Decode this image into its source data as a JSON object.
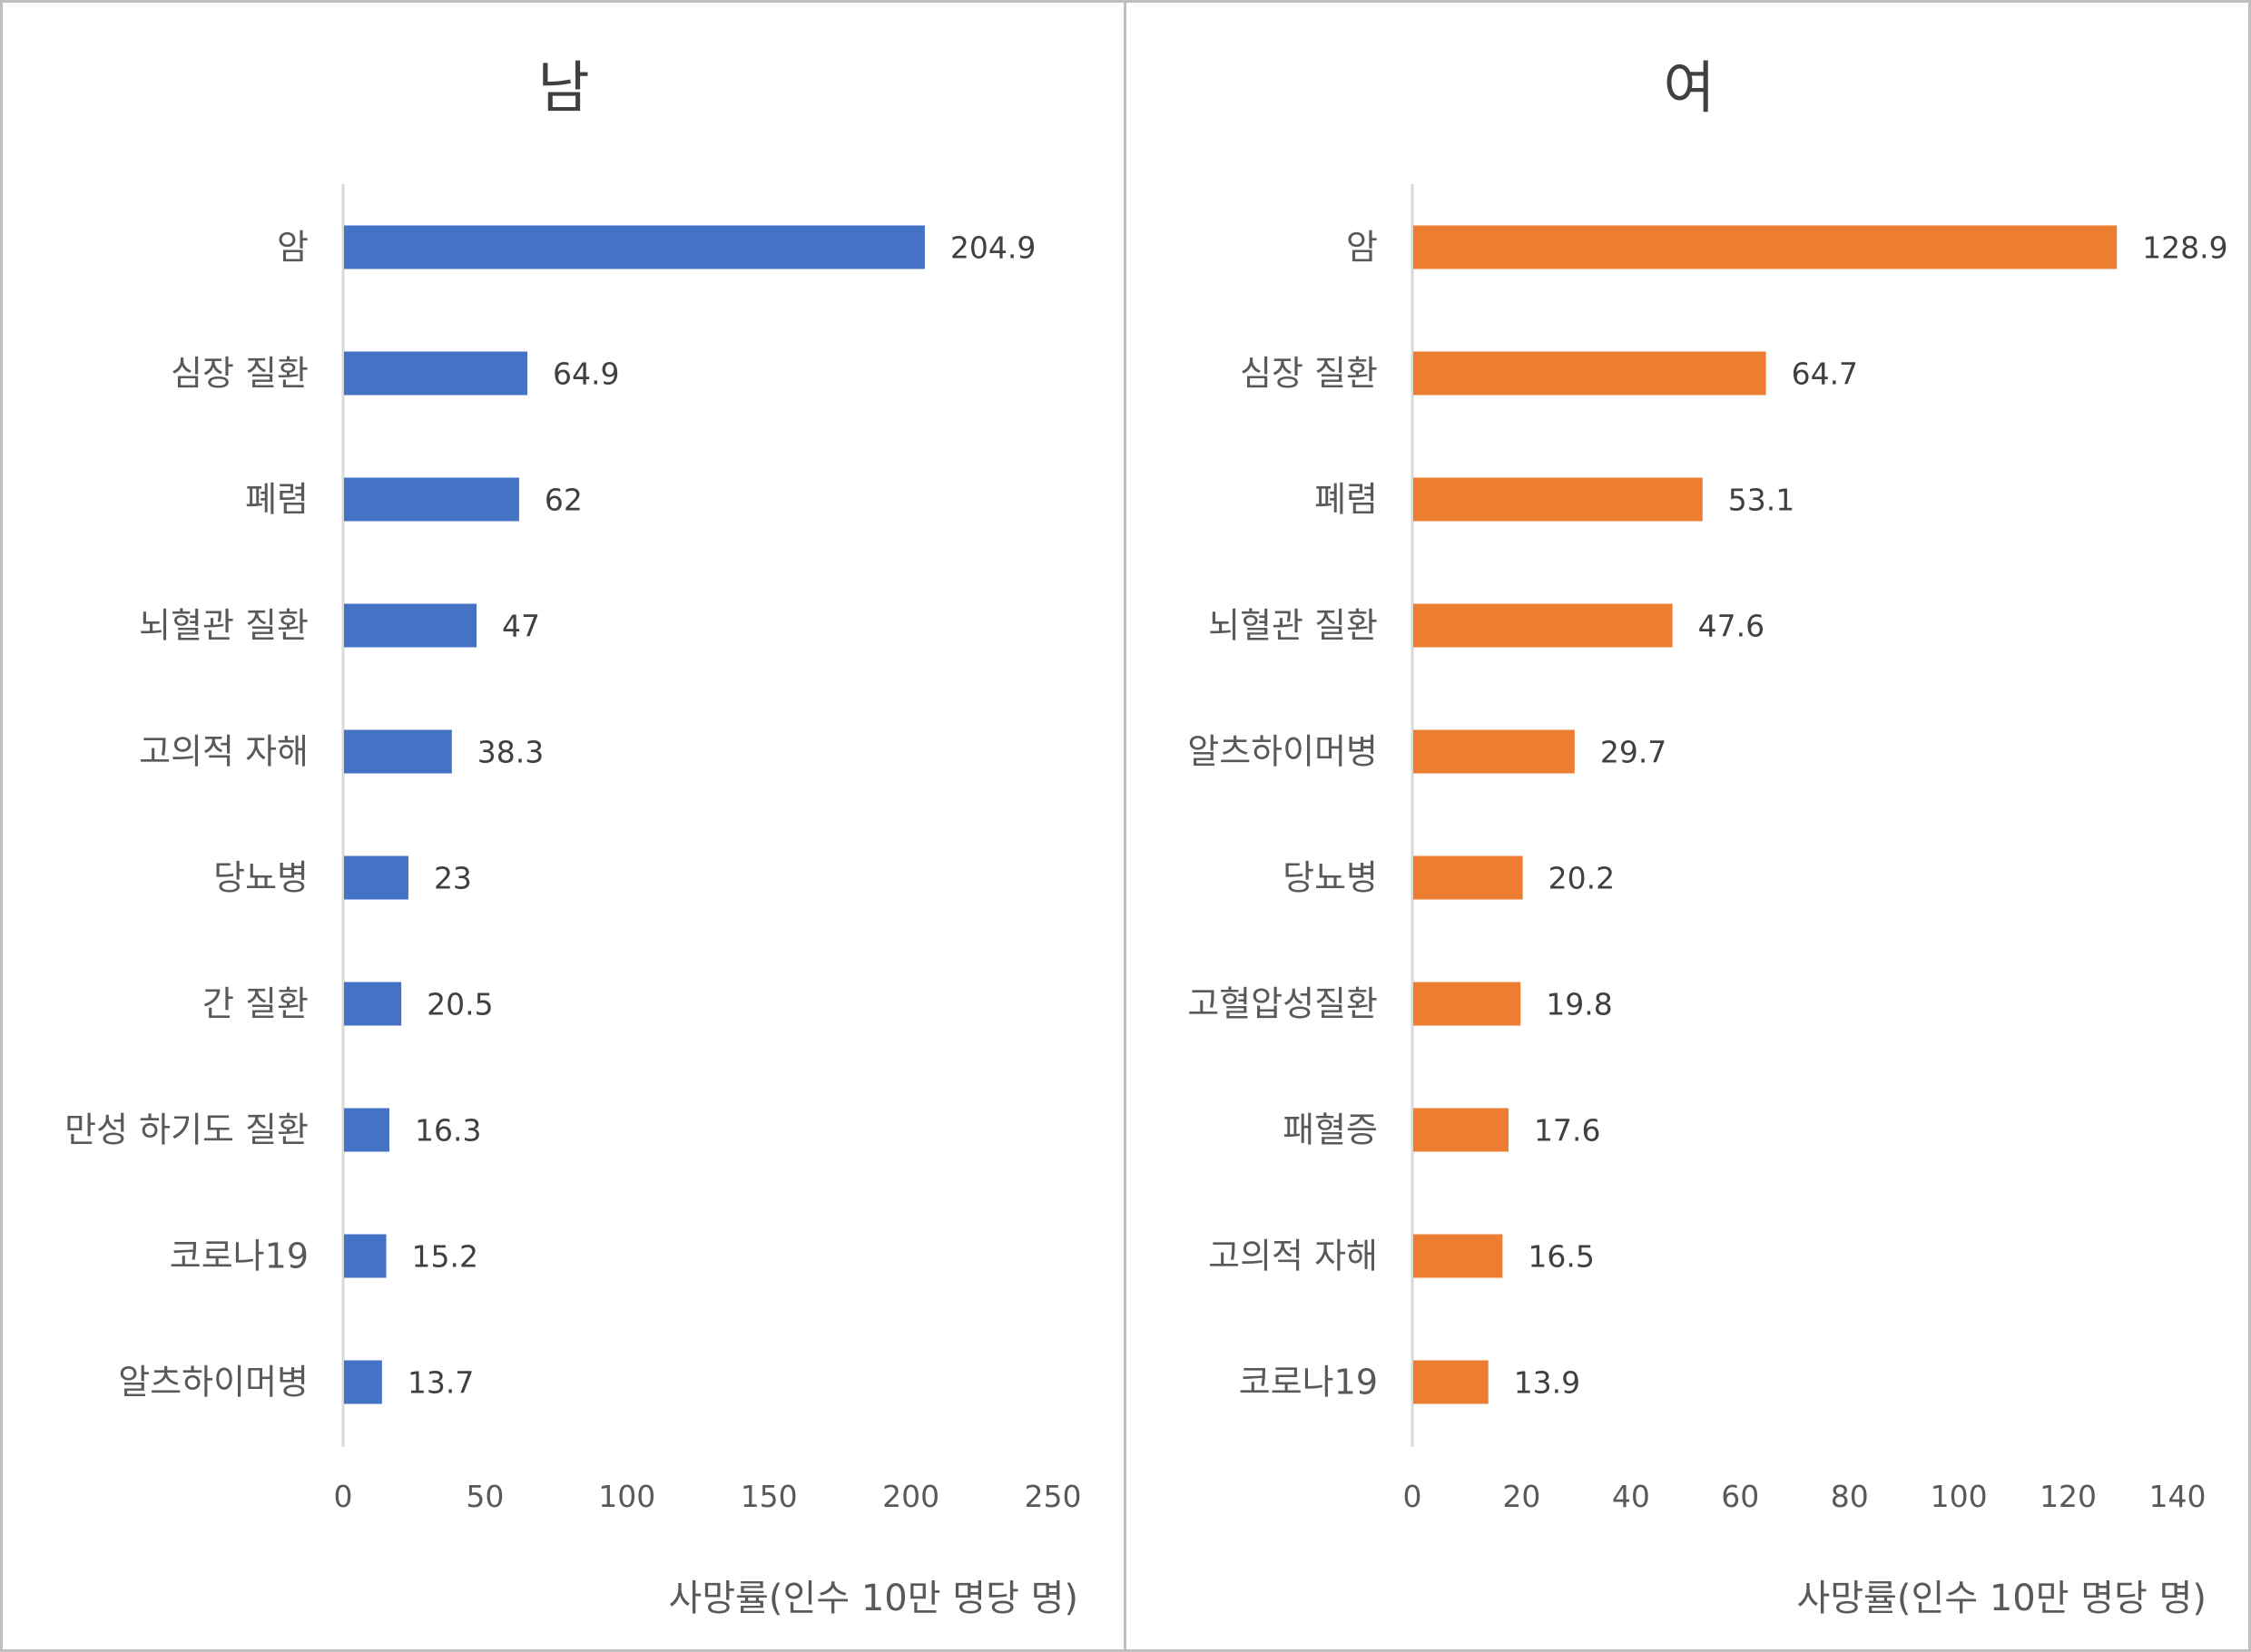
{
  "chart_data": [
    {
      "type": "bar",
      "orientation": "horizontal",
      "title": "남",
      "xlabel": "사망률(인수 10만 명당 명)",
      "categories": [
        "암",
        "심장 질환",
        "폐렴",
        "뇌혈관 질환",
        "고의적 자해",
        "당뇨병",
        "간 질환",
        "만성 하기도 질환",
        "코로나19",
        "알츠하이머병"
      ],
      "values": [
        204.9,
        64.9,
        62,
        47,
        38.3,
        23,
        20.5,
        16.3,
        15.2,
        13.7
      ],
      "xlim": [
        0,
        250
      ],
      "xticks": [
        0,
        50,
        100,
        150,
        200,
        250
      ],
      "color": "#4472C4",
      "grid": false,
      "data_labels": true
    },
    {
      "type": "bar",
      "orientation": "horizontal",
      "title": "여",
      "xlabel": "사망률(인수 10만 명당 명)",
      "categories": [
        "암",
        "심장 질환",
        "폐렴",
        "뇌혈관 질환",
        "알츠하이머병",
        "당뇨병",
        "고혈압성질환",
        "패혈증",
        "고의적 자해",
        "코로나19"
      ],
      "values": [
        128.9,
        64.7,
        53.1,
        47.6,
        29.7,
        20.2,
        19.8,
        17.6,
        16.5,
        13.9
      ],
      "xlim": [
        0,
        140
      ],
      "xticks": [
        0,
        20,
        40,
        60,
        80,
        100,
        120,
        140
      ],
      "color": "#ED7D31",
      "grid": false,
      "data_labels": true
    }
  ]
}
